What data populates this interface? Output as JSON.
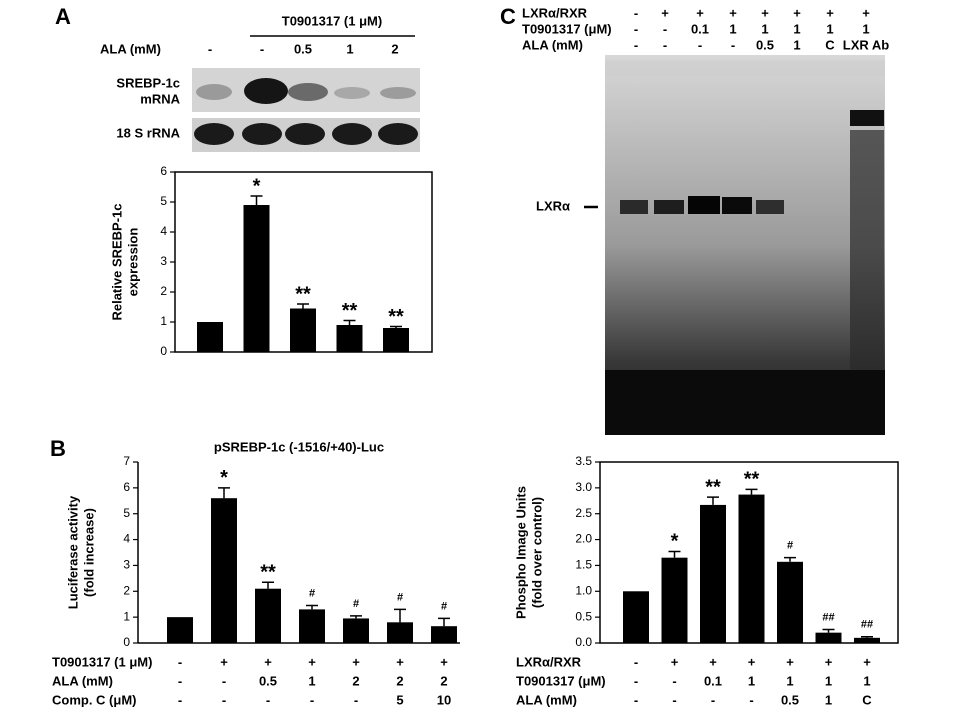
{
  "panel_labels": [
    "A",
    "B",
    "C"
  ],
  "blot_a": {
    "header": "T0901317 (1 μM)",
    "row_label": "ALA (mM)",
    "lanes": [
      "-",
      "-",
      "0.5",
      "1",
      "2"
    ],
    "band_srebp": [
      "SREBP-1c",
      "mRNA"
    ],
    "band_rrna": "18 S rRNA"
  },
  "gel_c": {
    "rows": [
      {
        "label": "LXRα/RXR",
        "lanes": [
          "-",
          "+",
          "+",
          "+",
          "+",
          "+",
          "+",
          "+"
        ]
      },
      {
        "label": "T0901317 (μM)",
        "lanes": [
          "-",
          "-",
          "0.1",
          "1",
          "1",
          "1",
          "1",
          "1"
        ]
      },
      {
        "label": "ALA (mM)",
        "lanes": [
          "-",
          "-",
          "-",
          "-",
          "0.5",
          "1",
          "C",
          "LXR Ab"
        ]
      }
    ],
    "band_label": "LXRα"
  },
  "chart_data": [
    {
      "type": "bar",
      "y_label": [
        "Relative SREBP-1c",
        "expression"
      ],
      "categories": [
        null,
        null,
        null,
        null,
        null
      ],
      "values": [
        1,
        4.9,
        1.45,
        0.9,
        0.8
      ],
      "errors": [
        0,
        0.3,
        0.15,
        0.15,
        0.05
      ],
      "annotations": [
        null,
        "*",
        "**",
        "**",
        "**"
      ],
      "color": "#000000",
      "ylim": [
        0,
        6
      ],
      "yticks": [
        0,
        1,
        2,
        3,
        4,
        5,
        6
      ]
    },
    {
      "type": "bar",
      "title": "pSREBP-1c (-1516/+40)-Luc",
      "y_label": [
        "Luciferase activity",
        "(fold increase)"
      ],
      "categories": [
        null,
        null,
        null,
        null,
        null,
        null,
        null
      ],
      "values": [
        1,
        5.6,
        2.1,
        1.3,
        0.95,
        0.8,
        0.65
      ],
      "errors": [
        0,
        0.4,
        0.25,
        0.15,
        0.1,
        0.5,
        0.3
      ],
      "annotations": [
        null,
        "*",
        "**",
        "#",
        "#",
        "#",
        "#"
      ],
      "color": "#000000",
      "ylim": [
        0,
        7
      ],
      "yticks": [
        0,
        1,
        2,
        3,
        4,
        5,
        6,
        7
      ],
      "condition_table": [
        {
          "label": "T0901317 (1 μM)",
          "cells": [
            "-",
            "+",
            "+",
            "+",
            "+",
            "+",
            "+"
          ]
        },
        {
          "label": "ALA (mM)",
          "cells": [
            "-",
            "-",
            "0.5",
            "1",
            "2",
            "2",
            "2"
          ]
        },
        {
          "label": "Comp. C (μM)",
          "cells": [
            "-",
            "-",
            "-",
            "-",
            "-",
            "5",
            "10"
          ]
        }
      ]
    },
    {
      "type": "bar",
      "y_label": [
        "Phospho Image Units",
        "(fold over control)"
      ],
      "categories": [
        null,
        null,
        null,
        null,
        null,
        null,
        null
      ],
      "values": [
        1.0,
        1.65,
        2.67,
        2.87,
        1.57,
        0.2,
        0.1
      ],
      "errors": [
        0,
        0.12,
        0.15,
        0.1,
        0.08,
        0.06,
        0.02
      ],
      "annotations": [
        null,
        "*",
        "**",
        "**",
        "#",
        "##",
        "##"
      ],
      "color": "#000000",
      "ylim": [
        0,
        3.5
      ],
      "yticks": [
        {
          "value": 0,
          "label": "0.0"
        },
        0.5,
        {
          "value": 1,
          "label": "1.0"
        },
        1.5,
        {
          "value": 2,
          "label": "2.0"
        },
        2.5,
        {
          "value": 3,
          "label": "3.0"
        },
        3.5
      ],
      "condition_table": [
        {
          "label": "LXRα/RXR",
          "cells": [
            "-",
            "+",
            "+",
            "+",
            "+",
            "+",
            "+"
          ]
        },
        {
          "label": "T0901317 (μM)",
          "cells": [
            "-",
            "-",
            "0.1",
            "1",
            "1",
            "1",
            "1"
          ]
        },
        {
          "label": "ALA (mM)",
          "cells": [
            "-",
            "-",
            "-",
            "-",
            "0.5",
            "1",
            "C"
          ]
        }
      ]
    }
  ]
}
